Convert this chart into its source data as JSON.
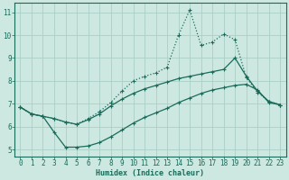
{
  "bg_color": "#cce8e0",
  "grid_color": "#aacfc8",
  "line_color": "#1a6b5a",
  "xlabel": "Humidex (Indice chaleur)",
  "xlim": [
    -0.5,
    23.5
  ],
  "ylim": [
    4.7,
    11.4
  ],
  "yticks": [
    5,
    6,
    7,
    8,
    9,
    10,
    11
  ],
  "xticks": [
    0,
    1,
    2,
    3,
    4,
    5,
    6,
    7,
    8,
    9,
    10,
    11,
    12,
    13,
    14,
    15,
    16,
    17,
    18,
    19,
    20,
    21,
    22,
    23
  ],
  "series1_x": [
    0,
    1,
    2,
    3,
    4,
    5,
    6,
    7,
    8,
    9,
    10,
    11,
    12,
    13,
    14,
    15,
    16,
    17,
    18,
    19,
    20,
    21,
    22,
    23
  ],
  "series1_y": [
    6.85,
    6.55,
    6.45,
    5.75,
    5.1,
    5.1,
    5.15,
    5.3,
    5.55,
    5.85,
    6.15,
    6.4,
    6.6,
    6.8,
    7.05,
    7.25,
    7.45,
    7.6,
    7.7,
    7.8,
    7.85,
    7.6,
    7.05,
    6.95
  ],
  "series2_x": [
    0,
    1,
    2,
    3,
    4,
    5,
    6,
    7,
    8,
    9,
    10,
    11,
    12,
    13,
    14,
    15,
    16,
    17,
    18,
    19,
    20,
    21,
    22,
    23
  ],
  "series2_y": [
    6.85,
    6.55,
    6.45,
    6.35,
    6.2,
    6.1,
    6.35,
    6.65,
    7.05,
    7.55,
    8.0,
    8.2,
    8.35,
    8.6,
    10.0,
    11.1,
    9.55,
    9.7,
    10.05,
    9.8,
    8.15,
    7.5,
    7.1,
    6.95
  ],
  "series3_x": [
    0,
    1,
    2,
    3,
    4,
    5,
    6,
    7,
    8,
    9,
    10,
    11,
    12,
    13,
    14,
    15,
    16,
    17,
    18,
    19,
    20,
    21,
    22,
    23
  ],
  "series3_y": [
    6.85,
    6.55,
    6.45,
    6.35,
    6.2,
    6.1,
    6.3,
    6.55,
    6.9,
    7.2,
    7.45,
    7.65,
    7.8,
    7.95,
    8.1,
    8.2,
    8.3,
    8.4,
    8.5,
    9.0,
    8.2,
    7.55,
    7.1,
    6.95
  ],
  "tick_fontsize": 5.5,
  "label_fontsize": 6.0
}
